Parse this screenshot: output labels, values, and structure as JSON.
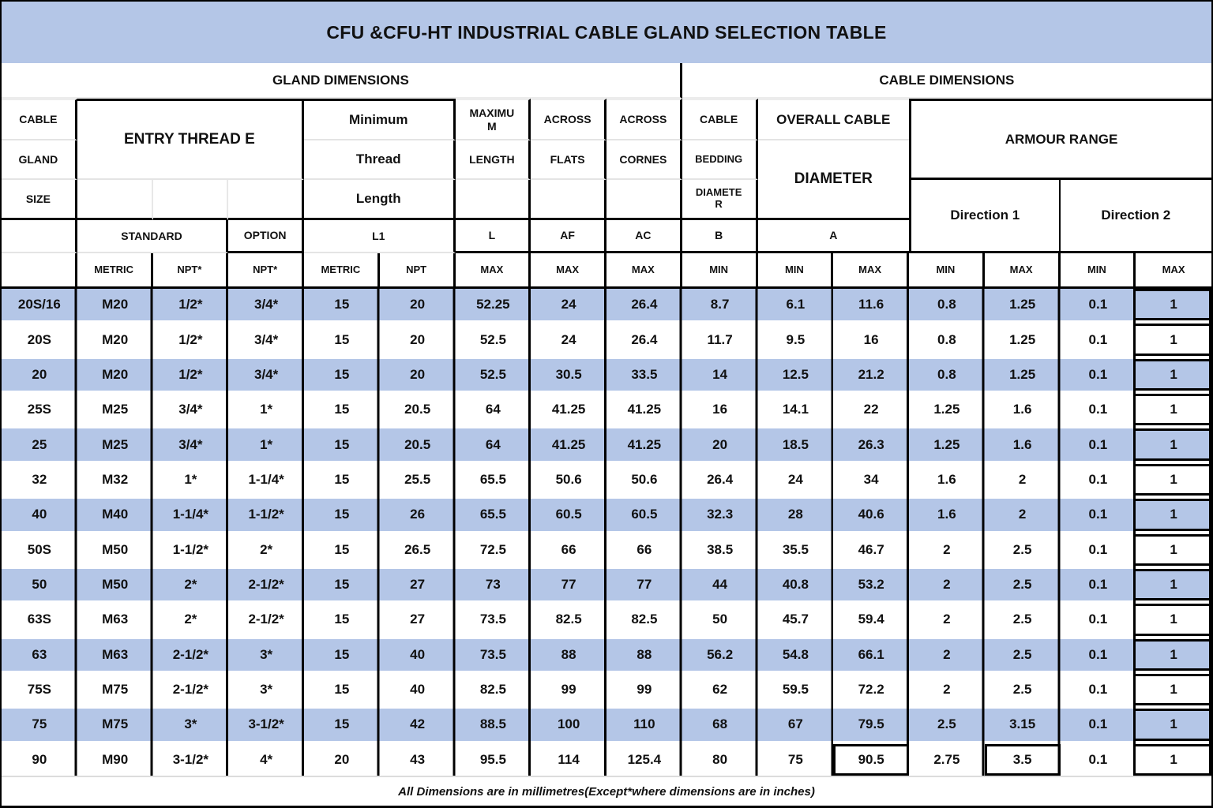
{
  "title": "CFU &CFU-HT INDUSTRIAL CABLE GLAND SELECTION TABLE",
  "sections": {
    "gland": "GLAND DIMENSIONS",
    "cable": "CABLE DIMENSIONS"
  },
  "header": {
    "col1": {
      "line1": "CABLE",
      "line2": "GLAND",
      "line3": "SIZE"
    },
    "entry_thread": "ENTRY THREAD E",
    "min_thread": {
      "line1": "Minimum",
      "line2": "Thread",
      "line3": "Length"
    },
    "max_length": {
      "line1": "MAXIMUM",
      "line2": "LENGTH"
    },
    "across_flats": {
      "line1": "ACROSS",
      "line2": "FLATS"
    },
    "across_corners": {
      "line1": "ACROSS",
      "line2": "CORNES"
    },
    "cable_bedding": {
      "line1": "CABLE",
      "line2": "BEDDING",
      "line3": "DIAMETER"
    },
    "overall_cable": {
      "line1": "OVERALL CABLE",
      "line2": "DIAMETER"
    },
    "armour_range": "ARMOUR RANGE",
    "standard": "STANDARD",
    "option": "OPTION",
    "l1": "L1",
    "l": "L",
    "af": "AF",
    "ac": "AC",
    "b": "B",
    "a": "A",
    "direction1": "Direction 1",
    "direction2": "Direction 2",
    "sub": [
      "METRIC",
      "NPT*",
      "NPT*",
      "METRIC",
      "NPT",
      "MAX",
      "MAX",
      "MAX",
      "MIN",
      "MIN",
      "MAX",
      "MIN",
      "MAX",
      "MIN",
      "MAX"
    ]
  },
  "rows": [
    [
      "20S/16",
      "M20",
      "1/2*",
      "3/4*",
      "15",
      "20",
      "52.25",
      "24",
      "26.4",
      "8.7",
      "6.1",
      "11.6",
      "0.8",
      "1.25",
      "0.1",
      "1"
    ],
    [
      "20S",
      "M20",
      "1/2*",
      "3/4*",
      "15",
      "20",
      "52.5",
      "24",
      "26.4",
      "11.7",
      "9.5",
      "16",
      "0.8",
      "1.25",
      "0.1",
      "1"
    ],
    [
      "20",
      "M20",
      "1/2*",
      "3/4*",
      "15",
      "20",
      "52.5",
      "30.5",
      "33.5",
      "14",
      "12.5",
      "21.2",
      "0.8",
      "1.25",
      "0.1",
      "1"
    ],
    [
      "25S",
      "M25",
      "3/4*",
      "1*",
      "15",
      "20.5",
      "64",
      "41.25",
      "41.25",
      "16",
      "14.1",
      "22",
      "1.25",
      "1.6",
      "0.1",
      "1"
    ],
    [
      "25",
      "M25",
      "3/4*",
      "1*",
      "15",
      "20.5",
      "64",
      "41.25",
      "41.25",
      "20",
      "18.5",
      "26.3",
      "1.25",
      "1.6",
      "0.1",
      "1"
    ],
    [
      "32",
      "M32",
      "1*",
      "1-1/4*",
      "15",
      "25.5",
      "65.5",
      "50.6",
      "50.6",
      "26.4",
      "24",
      "34",
      "1.6",
      "2",
      "0.1",
      "1"
    ],
    [
      "40",
      "M40",
      "1-1/4*",
      "1-1/2*",
      "15",
      "26",
      "65.5",
      "60.5",
      "60.5",
      "32.3",
      "28",
      "40.6",
      "1.6",
      "2",
      "0.1",
      "1"
    ],
    [
      "50S",
      "M50",
      "1-1/2*",
      "2*",
      "15",
      "26.5",
      "72.5",
      "66",
      "66",
      "38.5",
      "35.5",
      "46.7",
      "2",
      "2.5",
      "0.1",
      "1"
    ],
    [
      "50",
      "M50",
      "2*",
      "2-1/2*",
      "15",
      "27",
      "73",
      "77",
      "77",
      "44",
      "40.8",
      "53.2",
      "2",
      "2.5",
      "0.1",
      "1"
    ],
    [
      "63S",
      "M63",
      "2*",
      "2-1/2*",
      "15",
      "27",
      "73.5",
      "82.5",
      "82.5",
      "50",
      "45.7",
      "59.4",
      "2",
      "2.5",
      "0.1",
      "1"
    ],
    [
      "63",
      "M63",
      "2-1/2*",
      "3*",
      "15",
      "40",
      "73.5",
      "88",
      "88",
      "56.2",
      "54.8",
      "66.1",
      "2",
      "2.5",
      "0.1",
      "1"
    ],
    [
      "75S",
      "M75",
      "2-1/2*",
      "3*",
      "15",
      "40",
      "82.5",
      "99",
      "99",
      "62",
      "59.5",
      "72.2",
      "2",
      "2.5",
      "0.1",
      "1"
    ],
    [
      "75",
      "M75",
      "3*",
      "3-1/2*",
      "15",
      "42",
      "88.5",
      "100",
      "110",
      "68",
      "67",
      "79.5",
      "2.5",
      "3.15",
      "0.1",
      "1"
    ],
    [
      "90",
      "M90",
      "3-1/2*",
      "4*",
      "20",
      "43",
      "95.5",
      "114",
      "125.4",
      "80",
      "75",
      "90.5",
      "2.75",
      "3.5",
      "0.1",
      "1"
    ]
  ],
  "footer": "All Dimensions are in millimetres(Except*where dimensions are in inches)",
  "colors": {
    "accent": "#B4C6E7",
    "border": "#000000",
    "light_line": "#E4E4E4"
  }
}
